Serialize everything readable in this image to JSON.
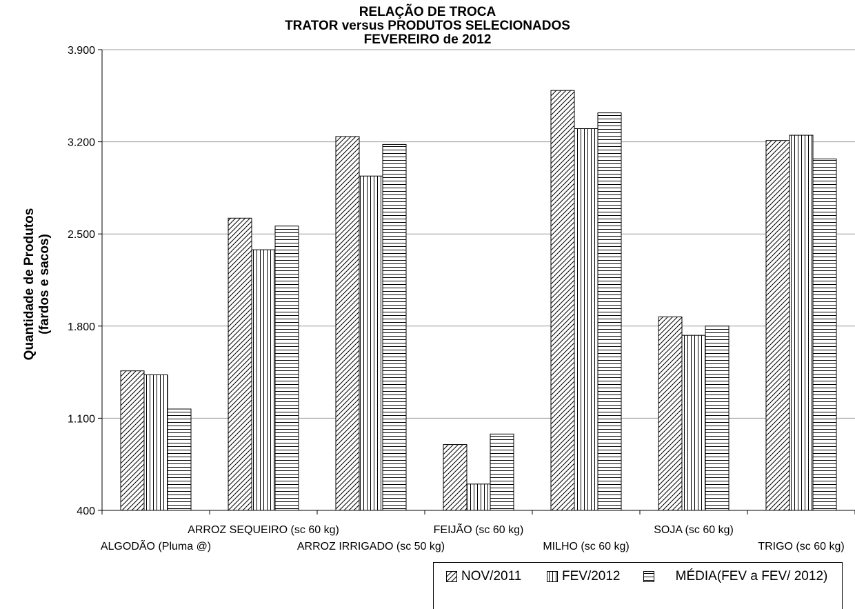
{
  "chart_data": {
    "type": "bar",
    "title": [
      "RELAÇÃO DE TROCA",
      "TRATOR versus PRODUTOS SELECIONADOS",
      "FEVEREIRO  de   2012"
    ],
    "ylabel": [
      "Quantidade de Produtos",
      "(fardos e sacos)"
    ],
    "xlabel": "",
    "ylim": [
      400,
      3900
    ],
    "yticks": [
      400,
      1100,
      1800,
      2500,
      3200,
      3900
    ],
    "ytick_labels": [
      "400",
      "1.100",
      "1.800",
      "2.500",
      "3.200",
      "3.900"
    ],
    "grid": true,
    "legend_position": "bottom-right",
    "categories": [
      "ALGODÃO (Pluma @)",
      "ARROZ SEQUEIRO (sc 60 kg)",
      "ARROZ IRRIGADO (sc 50 kg)",
      "FEIJÃO (sc 60 kg)",
      "MILHO (sc 60 kg)",
      "SOJA (sc 60 kg)",
      "TRIGO (sc 60 kg)"
    ],
    "series": [
      {
        "name": "NOV/2011",
        "pattern": "diagonal",
        "values": [
          1460,
          2620,
          3240,
          900,
          3590,
          1870,
          3210
        ]
      },
      {
        "name": "FEV/2012",
        "pattern": "vertical",
        "values": [
          1430,
          2380,
          2940,
          600,
          3300,
          1730,
          3250
        ]
      },
      {
        "name": "MÉDIA(FEV a  FEV/ 2012)",
        "pattern": "horizontal",
        "values": [
          1170,
          2560,
          3180,
          980,
          3420,
          1800,
          3070
        ]
      }
    ]
  }
}
